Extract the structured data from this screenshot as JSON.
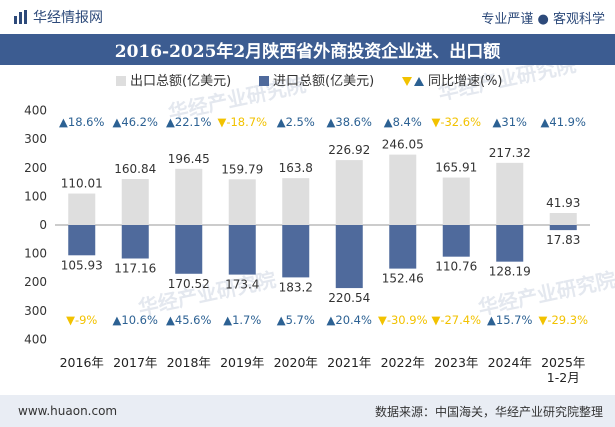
{
  "header": {
    "brand": "华经情报网",
    "tagline": "专业严谨 ● 客观科学"
  },
  "footer": {
    "website": "www.huaon.com",
    "source": "数据来源：中国海关，华经产业研究院整理"
  },
  "watermark": "华经产业研究院",
  "colors": {
    "export": "#dedede",
    "import": "#4f6a9c",
    "up": "#2c6193",
    "down": "#f2c200",
    "title_bg": "#3c5c91"
  },
  "chart_data": {
    "type": "bar",
    "title": "2016-2025年2月陕西省外商投资企业进、出口额",
    "categories": [
      "2016年",
      "2017年",
      "2018年",
      "2019年",
      "2020年",
      "2021年",
      "2022年",
      "2023年",
      "2024年",
      "2025年\n1-2月"
    ],
    "series": [
      {
        "name": "出口总额(亿美元)",
        "values": [
          110.01,
          160.84,
          196.45,
          159.79,
          163.8,
          226.92,
          246.05,
          165.91,
          217.32,
          41.93
        ]
      },
      {
        "name": "进口总额(亿美元)",
        "values": [
          105.93,
          117.16,
          170.52,
          173.4,
          183.2,
          220.54,
          152.46,
          110.76,
          128.19,
          17.83
        ]
      }
    ],
    "growth_series_name": "同比增速(%)",
    "export_growth": [
      18.6,
      46.2,
      22.1,
      -18.7,
      2.5,
      38.6,
      8.4,
      -32.6,
      31,
      41.9
    ],
    "import_growth": [
      -9,
      10.6,
      45.6,
      1.7,
      5.7,
      20.4,
      -30.9,
      -27.4,
      15.7,
      -29.3
    ],
    "yticks": [
      "400",
      "300",
      "200",
      "100",
      "0",
      "100",
      "200",
      "300",
      "400"
    ],
    "ylim": [
      -400,
      400
    ],
    "legend": "top-center"
  }
}
